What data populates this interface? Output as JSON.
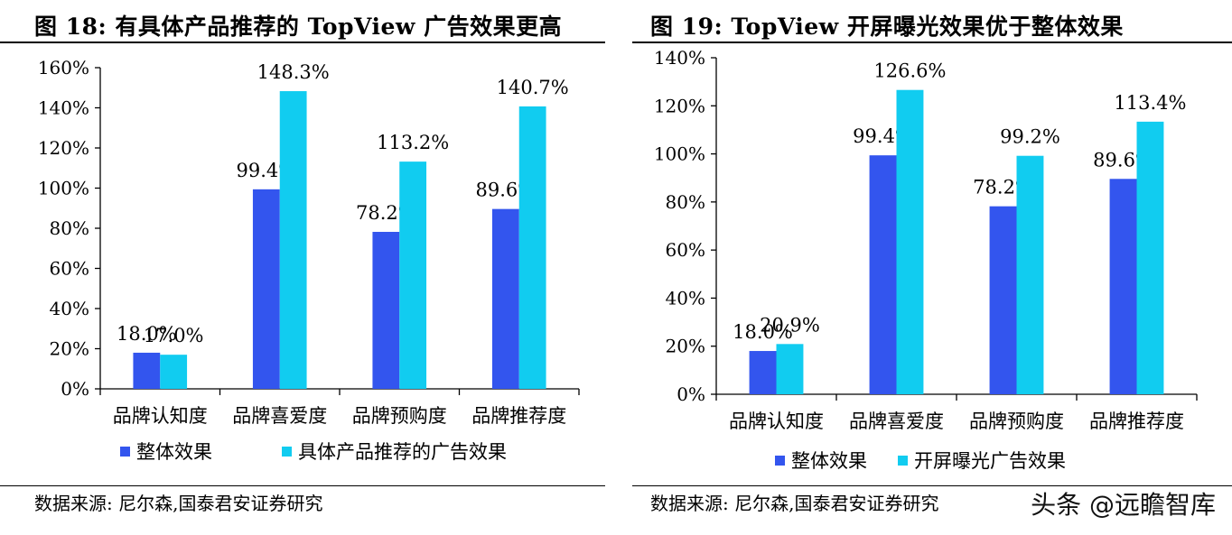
{
  "charts": [
    {
      "title": "图 18:  有具体产品推荐的 TopView 广告效果更高",
      "source": "数据来源:  尼尔森,国泰君安证券研究"
    },
    {
      "title": "图 19:  TopView 开屏曝光效果优于整体效果",
      "source": "数据来源:  尼尔森,国泰君安证券研究"
    }
  ],
  "watermark": "头条 @远瞻智库",
  "colors": {
    "series1": "#3355ee",
    "series2": "#11ccf0"
  },
  "chart_data": [
    {
      "type": "bar",
      "title": "有具体产品推荐的 TopView 广告效果更高",
      "categories": [
        "品牌认知度",
        "品牌喜爱度",
        "品牌预购度",
        "品牌推荐度"
      ],
      "series": [
        {
          "name": "整体效果",
          "values": [
            18.0,
            99.4,
            78.2,
            89.6
          ],
          "labels": [
            "18.0%",
            "99.4%",
            "78.2%",
            "89.6%"
          ]
        },
        {
          "name": "具体产品推荐的广告效果",
          "values": [
            17.0,
            148.3,
            113.2,
            140.7
          ],
          "labels": [
            "17.0%",
            "148.3%",
            "113.2%",
            "140.7%"
          ]
        }
      ],
      "ylim": [
        0,
        160
      ],
      "yticks": [
        "0%",
        "20%",
        "40%",
        "60%",
        "80%",
        "100%",
        "120%",
        "140%",
        "160%"
      ],
      "grid": false,
      "legend": "bottom"
    },
    {
      "type": "bar",
      "title": "TopView 开屏曝光效果优于整体效果",
      "categories": [
        "品牌认知度",
        "品牌喜爱度",
        "品牌预购度",
        "品牌推荐度"
      ],
      "series": [
        {
          "name": "整体效果",
          "values": [
            18.0,
            99.4,
            78.2,
            89.6
          ],
          "labels": [
            "18.0%",
            "99.4%",
            "78.2%",
            "89.6%"
          ]
        },
        {
          "name": "开屏曝光广告效果",
          "values": [
            20.9,
            126.6,
            99.2,
            113.4
          ],
          "labels": [
            "20.9%",
            "126.6%",
            "99.2%",
            "113.4%"
          ]
        }
      ],
      "ylim": [
        0,
        140
      ],
      "yticks": [
        "0%",
        "20%",
        "40%",
        "60%",
        "80%",
        "100%",
        "120%",
        "140%"
      ],
      "grid": false,
      "legend": "bottom"
    }
  ]
}
